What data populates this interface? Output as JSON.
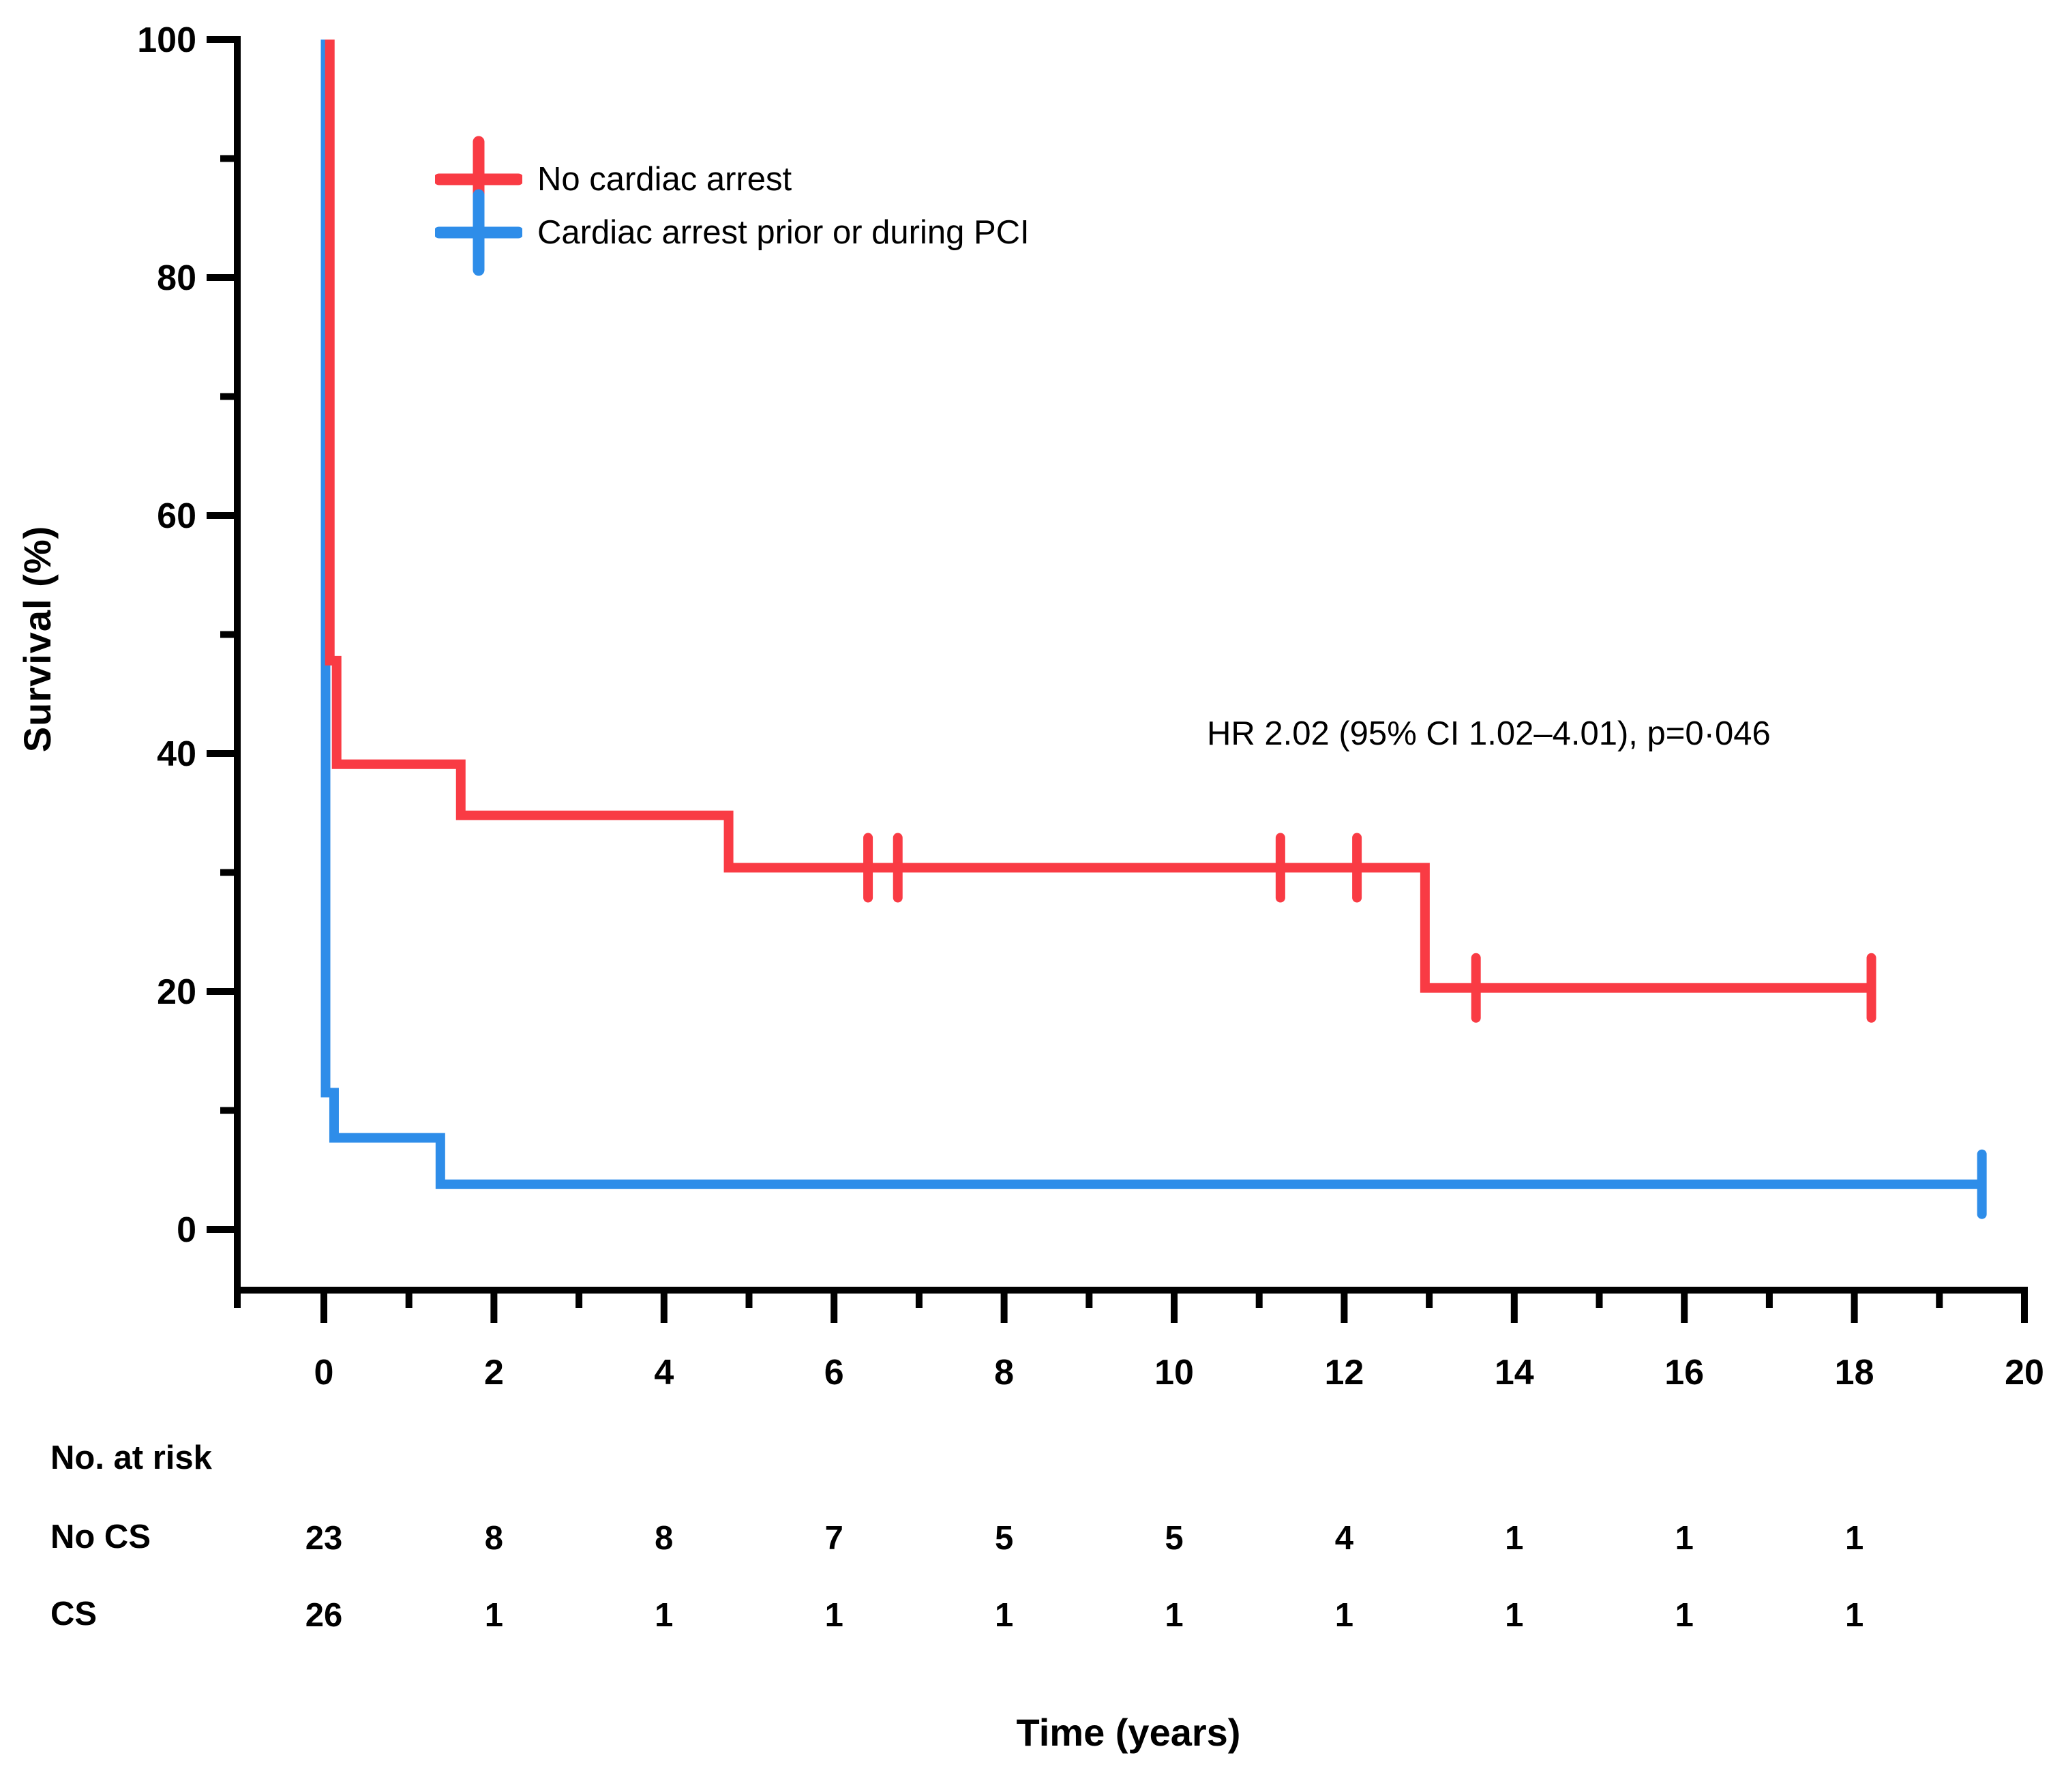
{
  "chart_data": {
    "type": "line",
    "subtype": "kaplan-meier-step-plot",
    "xlabel": "Time (years)",
    "ylabel": "Survival (%)",
    "xlim": [
      0,
      20
    ],
    "ylim": [
      0,
      100
    ],
    "x_ticks": [
      0,
      2,
      4,
      6,
      8,
      10,
      12,
      14,
      16,
      18,
      20
    ],
    "x_minor_ticks": [
      1,
      3,
      5,
      7,
      9,
      11,
      13,
      15,
      17,
      19
    ],
    "y_ticks": [
      0,
      20,
      40,
      60,
      80,
      100
    ],
    "y_minor_ticks": [
      10,
      30,
      50,
      70,
      90
    ],
    "grid": "off",
    "legend_position": "upper-left-inside",
    "annotation": "HR 2.02 (95% CI 1.02–4.01), p=0·046",
    "series": [
      {
        "name": "No cardiac arrest",
        "color": "#F93B44",
        "steps_t_pct": [
          [
            0.07,
            100
          ],
          [
            0.07,
            47.8
          ],
          [
            0.15,
            47.8
          ],
          [
            0.15,
            39.1
          ],
          [
            1.61,
            39.1
          ],
          [
            1.61,
            34.8
          ],
          [
            4.76,
            34.8
          ],
          [
            4.76,
            30.4
          ],
          [
            12.95,
            30.4
          ],
          [
            12.95,
            20.3
          ],
          [
            18.2,
            20.3
          ]
        ],
        "censor_marks_t_pct": [
          [
            6.4,
            30.4
          ],
          [
            6.75,
            30.4
          ],
          [
            11.25,
            30.4
          ],
          [
            12.15,
            30.4
          ],
          [
            13.55,
            20.3
          ],
          [
            18.2,
            20.3
          ]
        ]
      },
      {
        "name": "Cardiac arrest prior or during PCI",
        "color": "#2E8DE9",
        "steps_t_pct": [
          [
            0.02,
            100
          ],
          [
            0.02,
            11.5
          ],
          [
            0.12,
            11.5
          ],
          [
            0.12,
            7.7
          ],
          [
            1.37,
            7.7
          ],
          [
            1.37,
            3.8
          ],
          [
            19.55,
            3.8
          ]
        ],
        "censor_marks_t_pct": [
          [
            19.5,
            3.8
          ]
        ]
      }
    ],
    "risk_table": {
      "header": "No. at risk",
      "time_points": [
        0,
        2,
        4,
        6,
        8,
        10,
        12,
        14,
        16,
        18
      ],
      "rows": [
        {
          "label": "No CS",
          "values": [
            "23",
            "8",
            "8",
            "7",
            "5",
            "5",
            "4",
            "1",
            "1",
            "1"
          ]
        },
        {
          "label": "CS",
          "values": [
            "26",
            "1",
            "1",
            "1",
            "1",
            "1",
            "1",
            "1",
            "1",
            "1"
          ]
        }
      ]
    }
  }
}
